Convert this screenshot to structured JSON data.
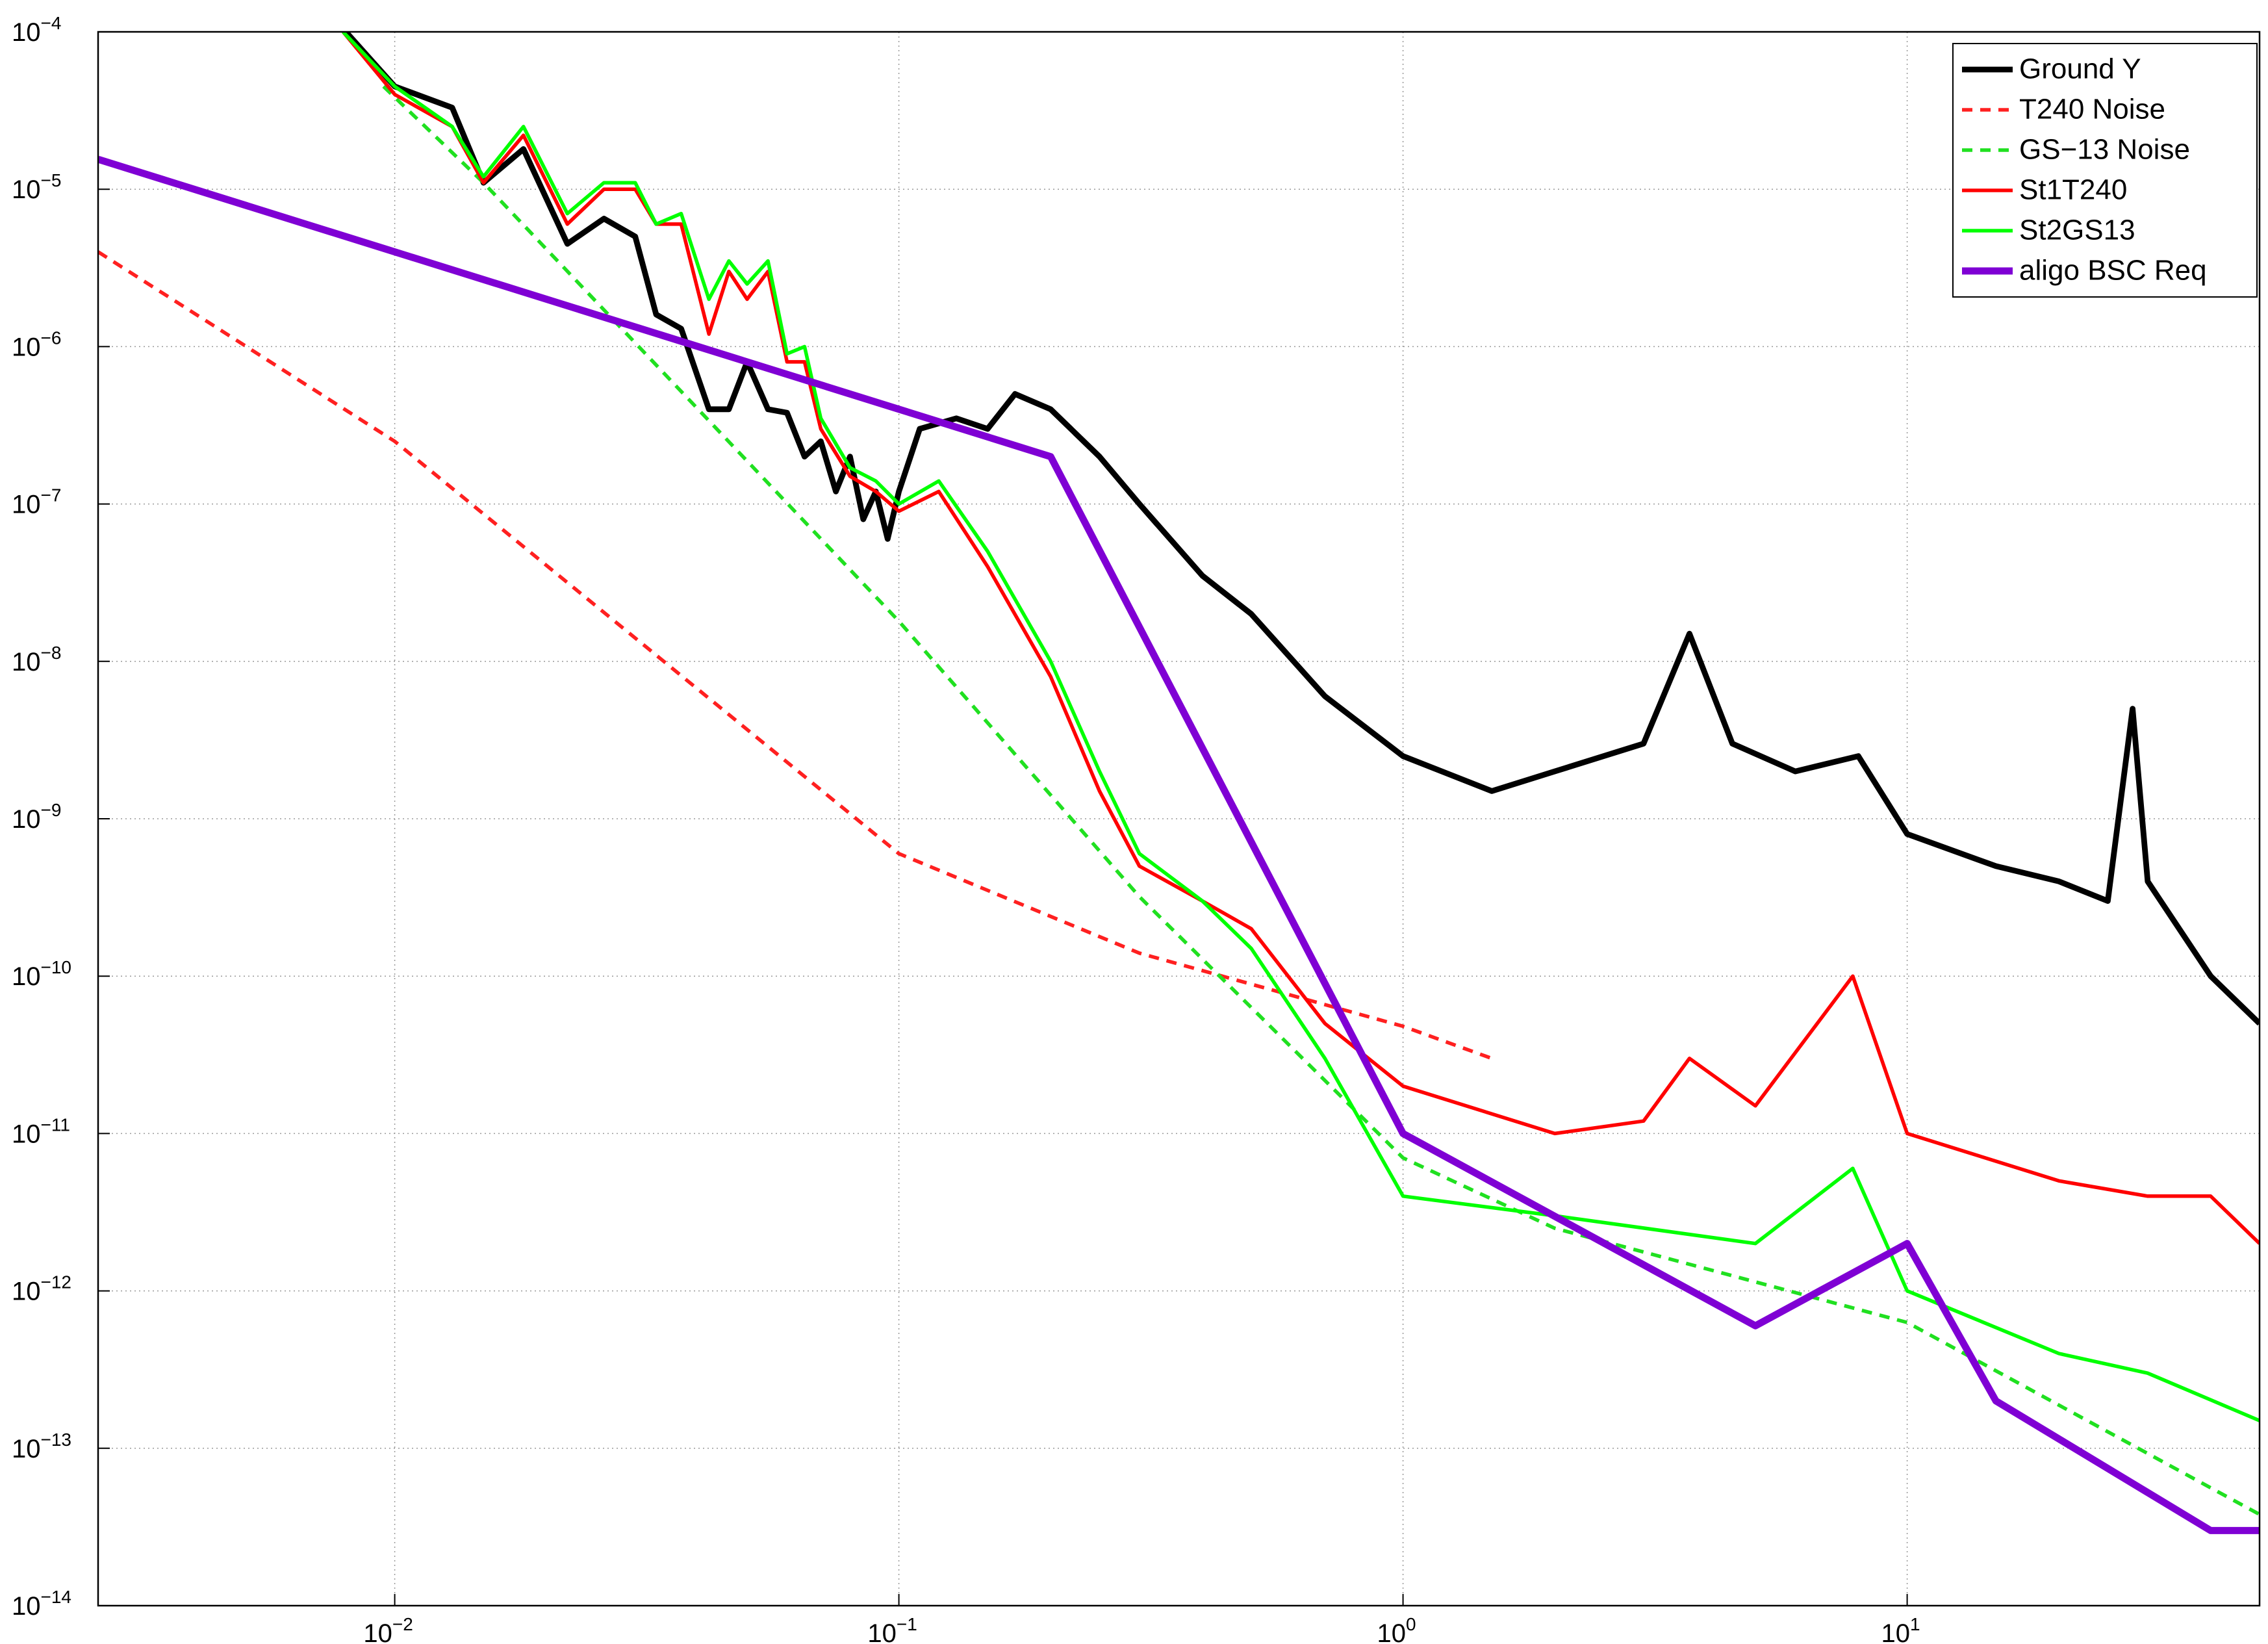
{
  "chart_data": {
    "type": "line",
    "xscale": "log",
    "yscale": "log",
    "grid": true,
    "legend": "upper right",
    "xlim": [
      0.00258,
      50
    ],
    "ylim": [
      1e-14,
      0.0001
    ],
    "xticks": [
      {
        "value": 0.01,
        "label": "10−2"
      },
      {
        "value": 0.1,
        "label": "10−1"
      },
      {
        "value": 1,
        "label": "100"
      },
      {
        "value": 10,
        "label": "101"
      }
    ],
    "yticks": [
      {
        "value": 1e-14,
        "label": "10−14"
      },
      {
        "value": 1e-13,
        "label": "10−13"
      },
      {
        "value": 1e-12,
        "label": "10−12"
      },
      {
        "value": 1e-11,
        "label": "10−11"
      },
      {
        "value": 1e-10,
        "label": "10−10"
      },
      {
        "value": 1e-09,
        "label": "10−9"
      },
      {
        "value": 1e-08,
        "label": "10−8"
      },
      {
        "value": 1e-07,
        "label": "10−7"
      },
      {
        "value": 1e-06,
        "label": "10−6"
      },
      {
        "value": 1e-05,
        "label": "10−5"
      },
      {
        "value": 0.0001,
        "label": "10−4"
      }
    ],
    "series": [
      {
        "name": "Ground Y",
        "color": "#000000",
        "style": "solid",
        "width": 4,
        "x": [
          0.008,
          0.01,
          0.013,
          0.015,
          0.018,
          0.022,
          0.026,
          0.03,
          0.033,
          0.037,
          0.042,
          0.046,
          0.05,
          0.055,
          0.06,
          0.065,
          0.07,
          0.075,
          0.08,
          0.085,
          0.09,
          0.095,
          0.1,
          0.11,
          0.13,
          0.15,
          0.17,
          0.2,
          0.25,
          0.3,
          0.4,
          0.5,
          0.7,
          1,
          1.5,
          2,
          3,
          3.7,
          4.5,
          6,
          8,
          10,
          15,
          20,
          25,
          28,
          30,
          40,
          50
        ],
        "values": [
          0.0001,
          4.5e-05,
          3.3e-05,
          1.1e-05,
          1.8e-05,
          4.5e-06,
          6.5e-06,
          5e-06,
          1.6e-06,
          1.3e-06,
          4e-07,
          4e-07,
          8e-07,
          4e-07,
          3.8e-07,
          2e-07,
          2.5e-07,
          1.2e-07,
          2e-07,
          8e-08,
          1.2e-07,
          6e-08,
          1.2e-07,
          3e-07,
          3.5e-07,
          3e-07,
          5e-07,
          4e-07,
          2e-07,
          1e-07,
          3.5e-08,
          2e-08,
          6e-09,
          2.5e-09,
          1.5e-09,
          2e-09,
          3e-09,
          1.5e-08,
          3e-09,
          2e-09,
          2.5e-09,
          8e-10,
          5e-10,
          4e-10,
          3e-10,
          5e-09,
          4e-10,
          1e-10,
          5e-11
        ]
      },
      {
        "name": "T240 Noise",
        "color": "#ff2020",
        "style": "dashed",
        "width": 2.5,
        "x": [
          0.00258,
          0.01,
          0.1,
          0.3,
          1,
          1.5
        ],
        "values": [
          4e-06,
          2.5e-07,
          6e-10,
          1.4e-10,
          4.8e-11,
          3e-11
        ]
      },
      {
        "name": "GS−13 Noise",
        "color": "#20e020",
        "style": "dashed",
        "width": 2.5,
        "x": [
          0.0095,
          0.015,
          0.1,
          0.3,
          1,
          2,
          10,
          50
        ],
        "values": [
          4.5e-05,
          1.1e-05,
          1.8e-08,
          3.2e-10,
          7e-12,
          2.5e-12,
          6.3e-13,
          3.8e-14
        ]
      },
      {
        "name": "St1T240",
        "color": "#ff0000",
        "style": "solid",
        "width": 2.5,
        "x": [
          0.0079,
          0.01,
          0.013,
          0.015,
          0.018,
          0.022,
          0.026,
          0.03,
          0.033,
          0.037,
          0.042,
          0.046,
          0.05,
          0.055,
          0.06,
          0.065,
          0.07,
          0.08,
          0.09,
          0.1,
          0.12,
          0.15,
          0.2,
          0.25,
          0.3,
          0.4,
          0.5,
          0.7,
          1,
          2,
          3,
          3.7,
          5,
          7.8,
          10,
          20,
          30,
          40,
          50
        ],
        "values": [
          0.0001,
          4e-05,
          2.5e-05,
          1.1e-05,
          2.2e-05,
          6e-06,
          1e-05,
          1e-05,
          6e-06,
          6e-06,
          1.2e-06,
          3e-06,
          2e-06,
          3e-06,
          8e-07,
          8e-07,
          3e-07,
          1.5e-07,
          1.2e-07,
          9e-08,
          1.2e-07,
          4e-08,
          8e-09,
          1.5e-09,
          5e-10,
          3e-10,
          2e-10,
          5e-11,
          2e-11,
          1e-11,
          1.2e-11,
          3e-11,
          1.5e-11,
          1e-10,
          1e-11,
          5e-12,
          4e-12,
          4e-12,
          2e-12
        ]
      },
      {
        "name": "St2GS13",
        "color": "#00ff00",
        "style": "solid",
        "width": 2.5,
        "x": [
          0.0079,
          0.01,
          0.013,
          0.015,
          0.018,
          0.022,
          0.026,
          0.03,
          0.033,
          0.037,
          0.042,
          0.046,
          0.05,
          0.055,
          0.06,
          0.065,
          0.07,
          0.08,
          0.09,
          0.1,
          0.12,
          0.15,
          0.2,
          0.25,
          0.3,
          0.4,
          0.5,
          0.7,
          1,
          2,
          5,
          7.8,
          10,
          20,
          30,
          50
        ],
        "values": [
          0.0001,
          4.5e-05,
          2.5e-05,
          1.2e-05,
          2.5e-05,
          7e-06,
          1.1e-05,
          1.1e-05,
          6e-06,
          7e-06,
          2e-06,
          3.5e-06,
          2.5e-06,
          3.5e-06,
          9e-07,
          1e-06,
          3.5e-07,
          1.7e-07,
          1.4e-07,
          1e-07,
          1.4e-07,
          5e-08,
          1e-08,
          2e-09,
          6e-10,
          3e-10,
          1.5e-10,
          3e-11,
          4e-12,
          3e-12,
          2e-12,
          6e-12,
          1e-12,
          4e-13,
          3e-13,
          1.5e-13
        ]
      },
      {
        "name": "aligo BSC Req",
        "color": "#7f00d4",
        "style": "solid",
        "width": 5,
        "x": [
          0.00258,
          0.2,
          1,
          5,
          10,
          15,
          40,
          50
        ],
        "values": [
          1.55e-05,
          2e-07,
          1e-11,
          6e-13,
          2e-12,
          2e-13,
          3e-14,
          3e-14
        ]
      }
    ]
  }
}
